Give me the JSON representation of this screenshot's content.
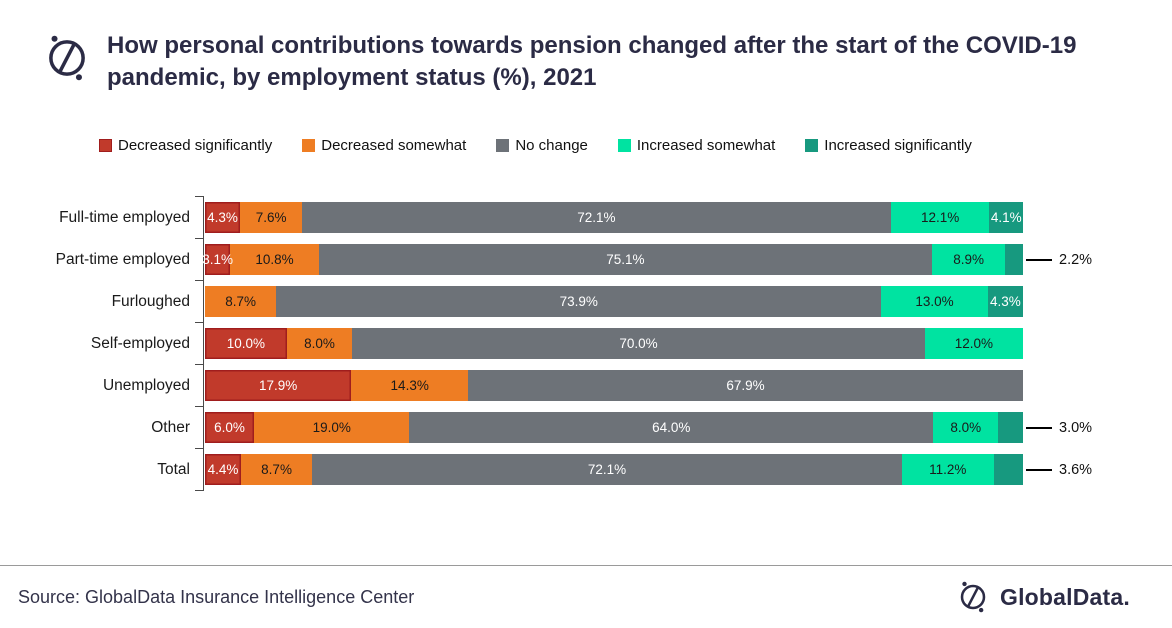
{
  "header": {
    "title": "How personal contributions towards pension changed after the start of the COVID-19 pandemic, by employment status (%), 2021"
  },
  "colors": {
    "brand_navy": "#2B2B45",
    "decreased_significantly": "#C13A2B",
    "decreased_significantly_border": "#A01D1D",
    "decreased_somewhat": "#EE7D23",
    "no_change": "#6D7278",
    "increased_somewhat": "#00E3A1",
    "increased_significantly": "#17997F"
  },
  "chart_data": {
    "type": "bar",
    "orientation": "horizontal",
    "stacked": true,
    "unit": "%",
    "legend_position": "top",
    "categories": [
      "Full-time employed",
      "Part-time employed",
      "Furloughed",
      "Self-employed",
      "Unemployed",
      "Other",
      "Total"
    ],
    "series": [
      {
        "name": "Decreased significantly",
        "color": "#C13A2B",
        "stroke": "#A01D1D",
        "label_color": "#FFFFFF",
        "values": [
          4.3,
          3.1,
          0,
          10.0,
          17.9,
          6.0,
          4.4
        ]
      },
      {
        "name": "Decreased somewhat",
        "color": "#EE7D23",
        "label_color": "#1A1A1A",
        "values": [
          7.6,
          10.8,
          8.7,
          8.0,
          14.3,
          19.0,
          8.7
        ]
      },
      {
        "name": "No change",
        "color": "#6D7278",
        "label_color": "#FFFFFF",
        "values": [
          72.1,
          75.1,
          73.9,
          70.0,
          67.9,
          64.0,
          72.1
        ]
      },
      {
        "name": "Increased somewhat",
        "color": "#00E3A1",
        "label_color": "#1A1A1A",
        "values": [
          12.1,
          8.9,
          13.0,
          12.0,
          0,
          8.0,
          11.2
        ]
      },
      {
        "name": "Increased significantly",
        "color": "#17997F",
        "label_color": "#FFFFFF",
        "values": [
          4.1,
          2.2,
          4.3,
          0,
          0,
          3.0,
          3.6
        ]
      }
    ],
    "external_labels": [
      {
        "category": "Part-time employed",
        "series": "Increased significantly",
        "label": "2.2%"
      },
      {
        "category": "Other",
        "series": "Increased significantly",
        "label": "3.0%"
      },
      {
        "category": "Total",
        "series": "Increased significantly",
        "label": "3.6%"
      }
    ]
  },
  "footer": {
    "source": "Source: GlobalData Insurance Intelligence Center",
    "brand": "GlobalData."
  }
}
